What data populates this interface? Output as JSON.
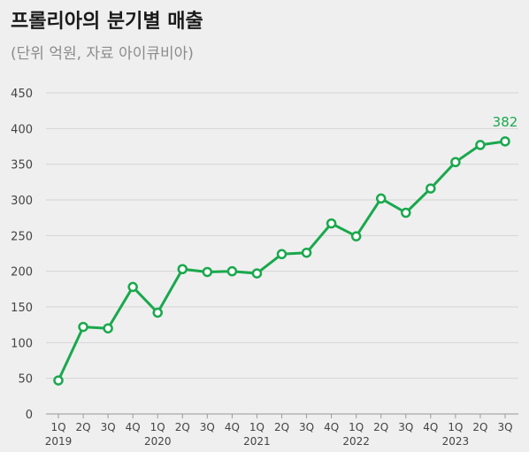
{
  "title": "프롤리아의 분기별 매출",
  "subtitle": "(단위 억원, 자료 아이큐비아)",
  "colors": {
    "series": "#1aa84d",
    "grid": "#d4d4d4",
    "axis_text": "#444444",
    "background": "#efefef"
  },
  "chart_data": {
    "type": "line",
    "title": "프롤리아의 분기별 매출",
    "subtitle": "(단위 억원, 자료 아이큐비아)",
    "xlabel": "",
    "ylabel": "",
    "ylim": [
      0,
      450
    ],
    "yticks": [
      0,
      50,
      100,
      150,
      200,
      250,
      300,
      350,
      400,
      450
    ],
    "grid": true,
    "categories": [
      "1Q",
      "2Q",
      "3Q",
      "4Q",
      "1Q",
      "2Q",
      "3Q",
      "4Q",
      "1Q",
      "2Q",
      "3Q",
      "4Q",
      "1Q",
      "2Q",
      "3Q",
      "4Q",
      "1Q",
      "2Q",
      "3Q"
    ],
    "years": [
      {
        "label": "2019",
        "index": 0
      },
      {
        "label": "2020",
        "index": 4
      },
      {
        "label": "2021",
        "index": 8
      },
      {
        "label": "2022",
        "index": 12
      },
      {
        "label": "2023",
        "index": 16
      }
    ],
    "series": [
      {
        "values": [
          47,
          122,
          120,
          178,
          142,
          203,
          199,
          200,
          197,
          224,
          226,
          267,
          249,
          302,
          282,
          316,
          353,
          377,
          382
        ],
        "last_value_label": "382"
      }
    ]
  }
}
